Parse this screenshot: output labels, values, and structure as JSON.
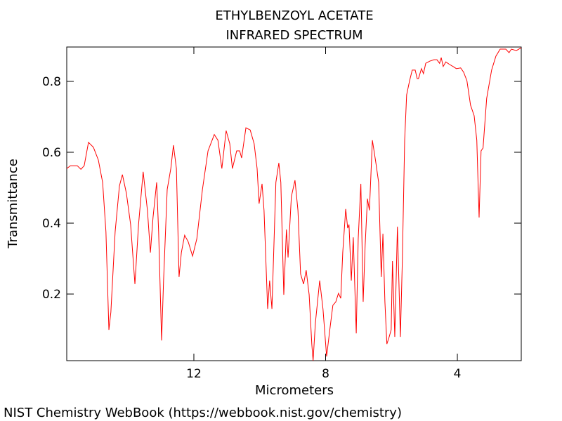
{
  "chart_data": {
    "type": "line",
    "title": "ETHYLBENZOYL ACETATE",
    "subtitle": "INFRARED SPECTRUM",
    "x_label": "Micrometers",
    "y_label": "Transmittance",
    "source": "NIST Chemistry WebBook (https://webbook.nist.gov/chemistry)",
    "xlim": [
      15.86,
      2.06
    ],
    "ylim": [
      0.012,
      0.897
    ],
    "xticks": [
      12,
      8,
      4
    ],
    "yticks": [
      0.2,
      0.4,
      0.6,
      0.8
    ],
    "color": "#ff0000",
    "x": [
      15.86,
      15.75,
      15.54,
      15.43,
      15.33,
      15.2,
      15.05,
      14.9,
      14.77,
      14.67,
      14.58,
      14.52,
      14.39,
      14.26,
      14.17,
      14.05,
      13.92,
      13.79,
      13.68,
      13.54,
      13.41,
      13.32,
      13.24,
      13.13,
      13.07,
      12.98,
      12.92,
      12.81,
      12.7,
      12.62,
      12.53,
      12.45,
      12.38,
      12.28,
      12.17,
      12.04,
      11.91,
      11.74,
      11.57,
      11.38,
      11.27,
      11.15,
      11.02,
      10.91,
      10.83,
      10.7,
      10.61,
      10.55,
      10.42,
      10.29,
      10.17,
      10.08,
      10.02,
      9.93,
      9.87,
      9.76,
      9.7,
      9.63,
      9.51,
      9.42,
      9.36,
      9.27,
      9.19,
      9.14,
      9.04,
      8.93,
      8.84,
      8.76,
      8.67,
      8.59,
      8.5,
      8.42,
      8.38,
      8.31,
      8.18,
      8.08,
      7.97,
      7.86,
      7.78,
      7.69,
      7.61,
      7.54,
      7.48,
      7.39,
      7.33,
      7.29,
      7.22,
      7.16,
      7.07,
      7.01,
      6.93,
      6.86,
      6.8,
      6.73,
      6.67,
      6.58,
      6.48,
      6.39,
      6.31,
      6.26,
      6.2,
      6.14,
      6.07,
      6.01,
      5.97,
      5.9,
      5.82,
      5.73,
      5.67,
      5.6,
      5.54,
      5.45,
      5.37,
      5.28,
      5.22,
      5.18,
      5.09,
      5.03,
      4.96,
      4.84,
      4.71,
      4.62,
      4.54,
      4.49,
      4.43,
      4.35,
      4.24,
      4.13,
      4.03,
      3.9,
      3.81,
      3.71,
      3.6,
      3.49,
      3.41,
      3.34,
      3.28,
      3.22,
      3.11,
      2.96,
      2.83,
      2.7,
      2.53,
      2.43,
      2.36,
      2.21,
      2.06
    ],
    "values": [
      0.554,
      0.562,
      0.562,
      0.552,
      0.562,
      0.628,
      0.614,
      0.578,
      0.515,
      0.376,
      0.099,
      0.149,
      0.376,
      0.505,
      0.537,
      0.485,
      0.396,
      0.228,
      0.396,
      0.545,
      0.436,
      0.317,
      0.416,
      0.515,
      0.376,
      0.069,
      0.238,
      0.495,
      0.554,
      0.62,
      0.554,
      0.248,
      0.317,
      0.366,
      0.347,
      0.307,
      0.356,
      0.495,
      0.604,
      0.65,
      0.634,
      0.554,
      0.661,
      0.624,
      0.554,
      0.604,
      0.604,
      0.584,
      0.669,
      0.663,
      0.624,
      0.554,
      0.455,
      0.511,
      0.436,
      0.158,
      0.238,
      0.158,
      0.515,
      0.57,
      0.515,
      0.198,
      0.382,
      0.303,
      0.475,
      0.521,
      0.436,
      0.257,
      0.228,
      0.267,
      0.198,
      0.059,
      0.012,
      0.119,
      0.238,
      0.158,
      0.024,
      0.109,
      0.168,
      0.178,
      0.202,
      0.188,
      0.317,
      0.44,
      0.386,
      0.396,
      0.238,
      0.36,
      0.089,
      0.356,
      0.511,
      0.178,
      0.337,
      0.469,
      0.436,
      0.634,
      0.574,
      0.515,
      0.248,
      0.37,
      0.178,
      0.059,
      0.079,
      0.099,
      0.293,
      0.079,
      0.39,
      0.079,
      0.297,
      0.634,
      0.762,
      0.802,
      0.832,
      0.832,
      0.808,
      0.808,
      0.836,
      0.822,
      0.851,
      0.857,
      0.861,
      0.861,
      0.851,
      0.867,
      0.842,
      0.855,
      0.848,
      0.842,
      0.836,
      0.838,
      0.826,
      0.802,
      0.733,
      0.703,
      0.634,
      0.416,
      0.604,
      0.612,
      0.752,
      0.832,
      0.871,
      0.891,
      0.891,
      0.881,
      0.891,
      0.887,
      0.895
    ]
  }
}
